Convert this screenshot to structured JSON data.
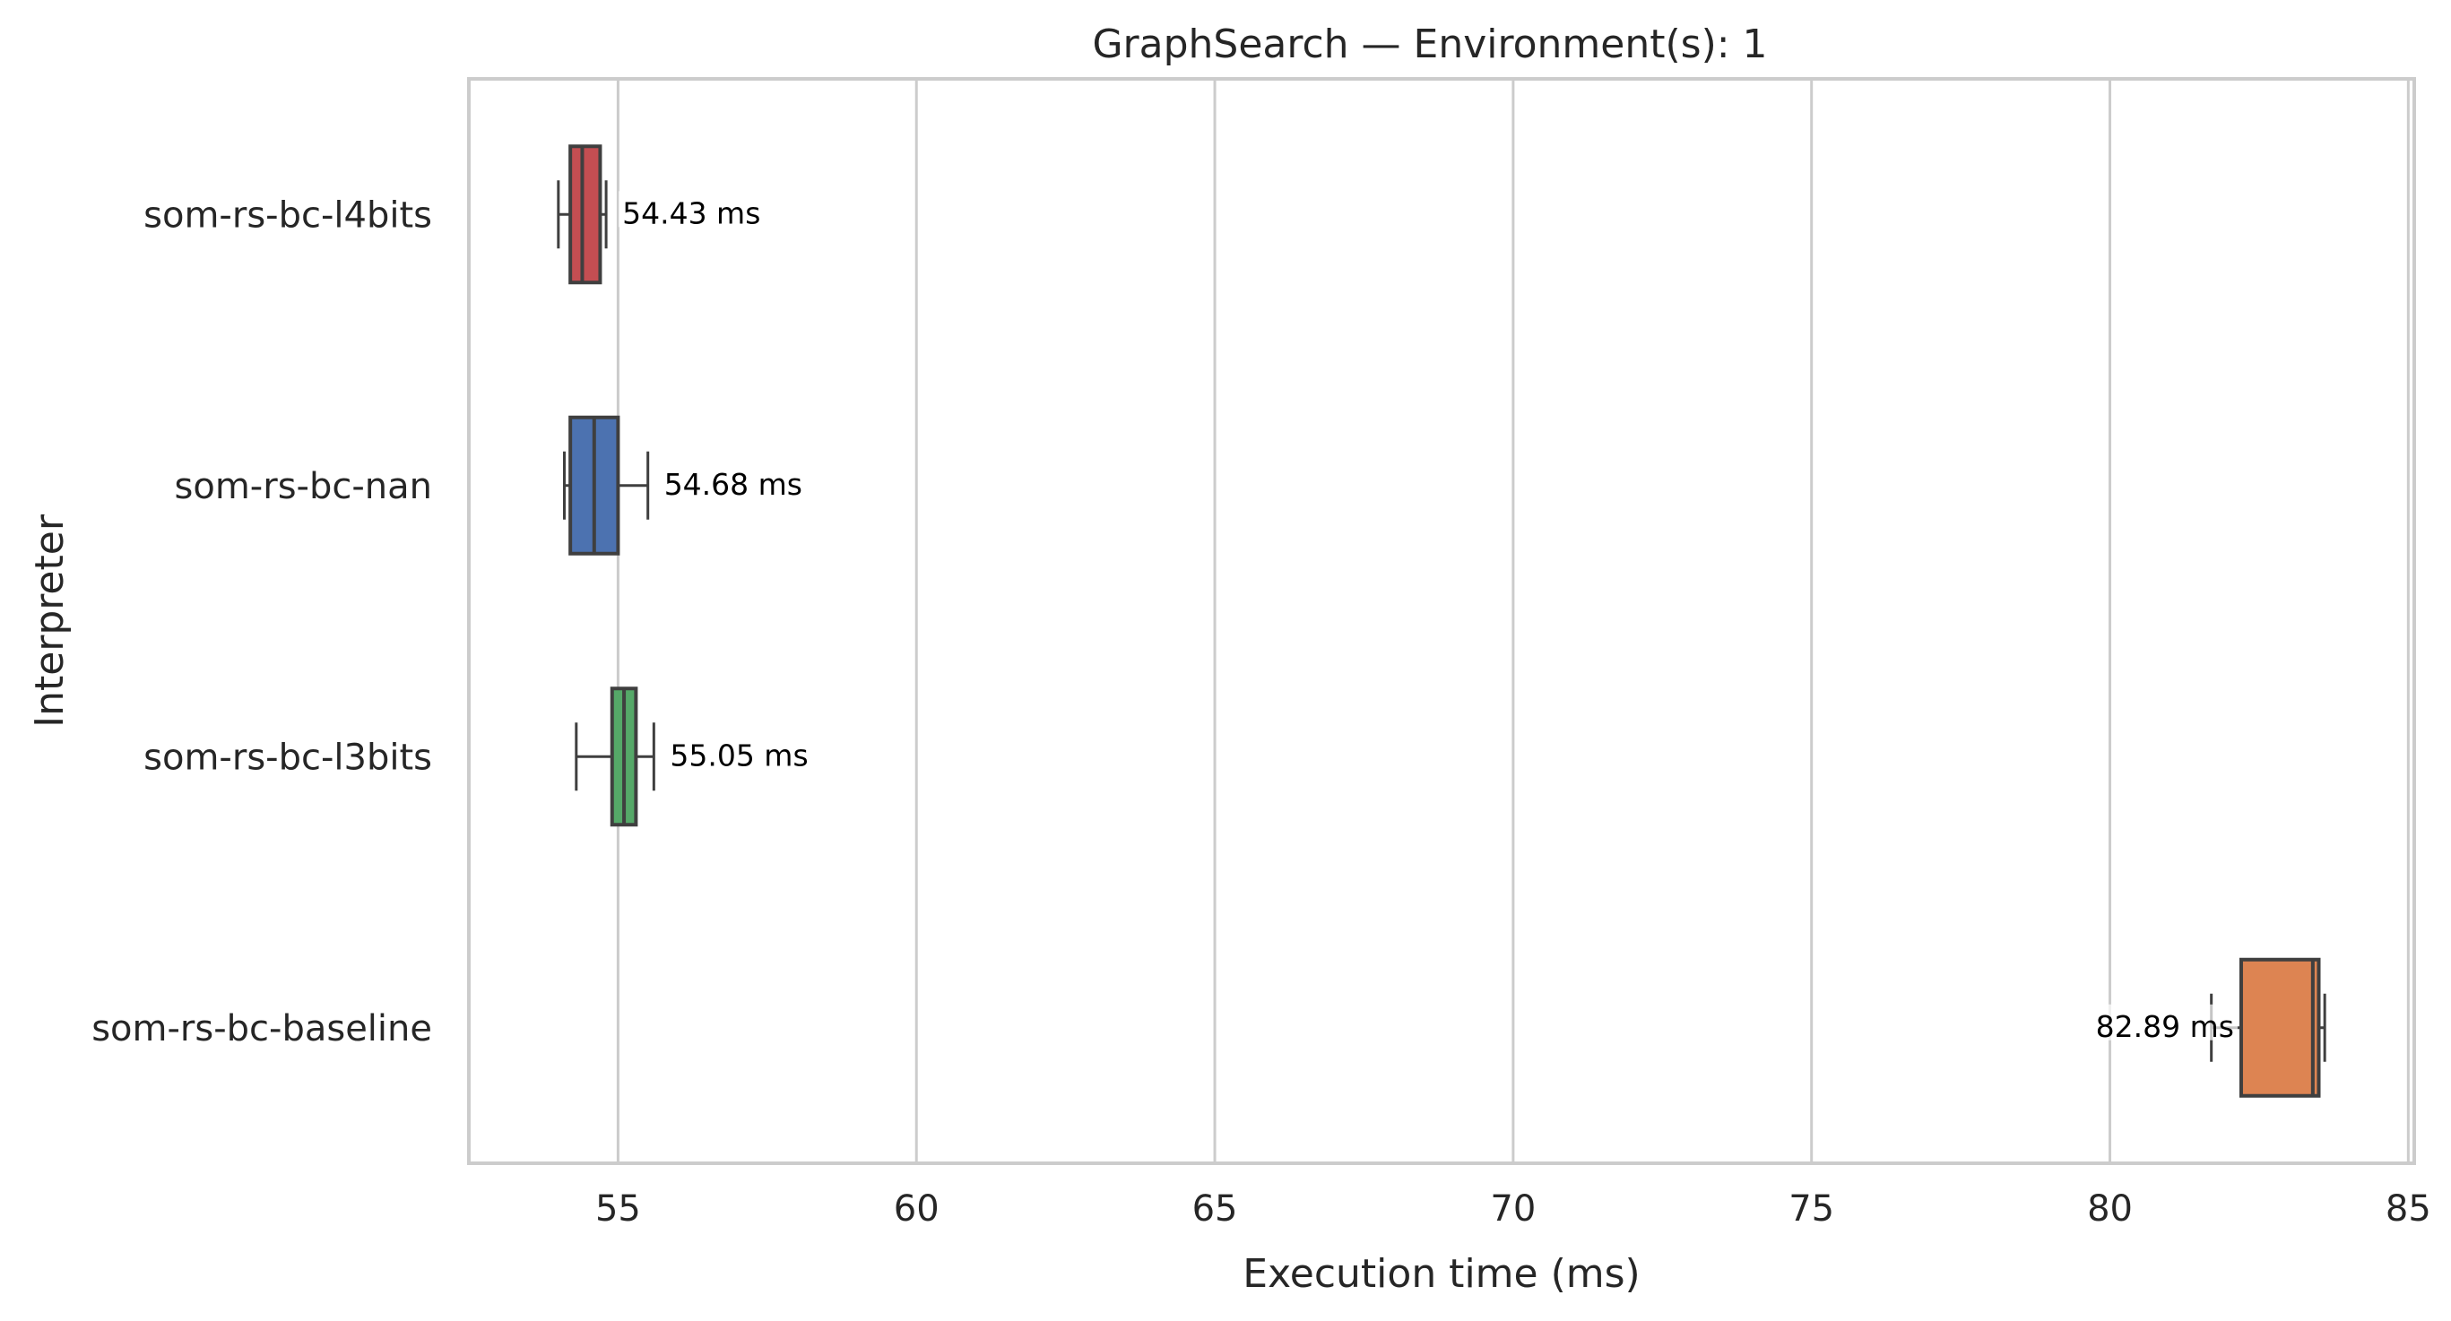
{
  "chart_data": {
    "type": "box",
    "orientation": "horizontal",
    "title": "GraphSearch — Environment(s): 1",
    "xlabel": "Execution time (ms)",
    "ylabel": "Interpreter",
    "xlim": [
      52.5,
      85.1
    ],
    "xticks": [
      55,
      60,
      65,
      70,
      75,
      80,
      85
    ],
    "grid": "vertical",
    "categories": [
      "som-rs-bc-l4bits",
      "som-rs-bc-nan",
      "som-rs-bc-l3bits",
      "som-rs-bc-baseline"
    ],
    "series": [
      {
        "category": "som-rs-bc-l4bits",
        "color": "#c44e52",
        "whislo": 54.0,
        "q1": 54.2,
        "med": 54.4,
        "q3": 54.7,
        "whishi": 54.8,
        "mean": 54.43,
        "mean_label": "54.43 ms",
        "label_side": "right"
      },
      {
        "category": "som-rs-bc-nan",
        "color": "#4c72b0",
        "whislo": 54.1,
        "q1": 54.2,
        "med": 54.6,
        "q3": 55.0,
        "whishi": 55.5,
        "mean": 54.68,
        "mean_label": "54.68 ms",
        "label_side": "right"
      },
      {
        "category": "som-rs-bc-l3bits",
        "color": "#55a868",
        "whislo": 54.3,
        "q1": 54.9,
        "med": 55.1,
        "q3": 55.3,
        "whishi": 55.6,
        "mean": 55.05,
        "mean_label": "55.05 ms",
        "label_side": "right"
      },
      {
        "category": "som-rs-bc-baseline",
        "color": "#dd8452",
        "whislo": 81.7,
        "q1": 82.2,
        "med": 83.4,
        "q3": 83.5,
        "whishi": 83.6,
        "mean": 82.89,
        "mean_label": "82.89 ms",
        "label_side": "left"
      }
    ]
  }
}
